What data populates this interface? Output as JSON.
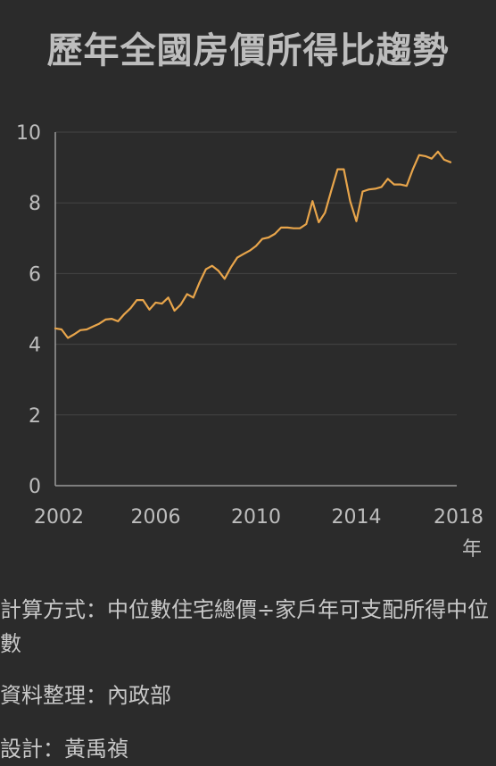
{
  "title": "歷年全國房價所得比趨勢",
  "notes": {
    "formula": "計算方式：中位數住宅總價÷家戶年可支配所得中位數",
    "source": "資料整理：內政部",
    "design": "設計：黃禹禎"
  },
  "colors": {
    "background": "#2b2b2b",
    "line": "#e8a54b",
    "grid": "#454545",
    "axis": "#9a9a9a",
    "text": "#bdbdbd"
  },
  "chart_data": {
    "type": "line",
    "title": "歷年全國房價所得比趨勢",
    "xlabel": "年",
    "ylabel": "",
    "xlim": [
      2002,
      2018
    ],
    "ylim": [
      0,
      10
    ],
    "x_ticks": [
      2002,
      2006,
      2010,
      2014,
      2018
    ],
    "y_ticks": [
      0,
      2,
      4,
      6,
      8,
      10
    ],
    "grid": true,
    "series": [
      {
        "x": [
          2002.0,
          2002.25,
          2002.5,
          2002.75,
          2003.0,
          2003.25,
          2003.5,
          2003.75,
          2004.0,
          2004.25,
          2004.5,
          2004.75,
          2005.0,
          2005.25,
          2005.5,
          2005.75,
          2006.0,
          2006.25,
          2006.5,
          2006.75,
          2007.0,
          2007.25,
          2007.5,
          2007.75,
          2008.0,
          2008.25,
          2008.5,
          2008.75,
          2009.0,
          2009.25,
          2009.5,
          2009.75,
          2010.0,
          2010.25,
          2010.5,
          2010.75,
          2011.0,
          2011.25,
          2011.5,
          2011.75,
          2012.0,
          2012.25,
          2012.5,
          2012.75,
          2013.0,
          2013.25,
          2013.5,
          2013.75,
          2014.0,
          2014.25,
          2014.5,
          2014.75,
          2015.0,
          2015.25,
          2015.5,
          2015.75,
          2016.0,
          2016.25,
          2016.5,
          2016.75,
          2017.0,
          2017.25,
          2017.5,
          2017.75
        ],
        "values": [
          4.45,
          4.42,
          4.18,
          4.28,
          4.4,
          4.42,
          4.5,
          4.58,
          4.7,
          4.72,
          4.65,
          4.85,
          5.02,
          5.25,
          5.25,
          4.98,
          5.18,
          5.15,
          5.32,
          4.95,
          5.12,
          5.42,
          5.32,
          5.75,
          6.12,
          6.22,
          6.08,
          5.85,
          6.18,
          6.45,
          6.55,
          6.65,
          6.78,
          6.98,
          7.02,
          7.12,
          7.3,
          7.3,
          7.28,
          7.28,
          7.4,
          8.05,
          7.45,
          7.72,
          8.35,
          8.95,
          8.95,
          8.05,
          7.48,
          8.32,
          8.38,
          8.4,
          8.45,
          8.68,
          8.52,
          8.52,
          8.48,
          8.95,
          9.35,
          9.32,
          9.25,
          9.45,
          9.22,
          9.15
        ]
      }
    ]
  }
}
